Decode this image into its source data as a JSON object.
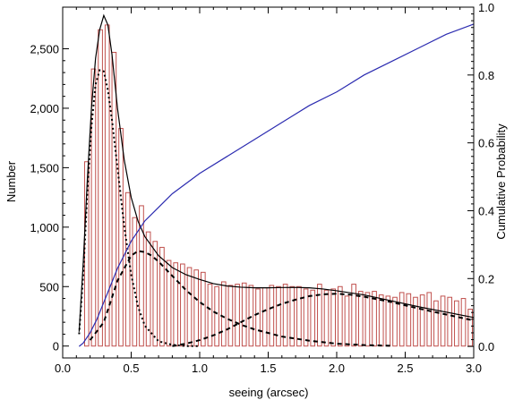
{
  "chart_data": {
    "type": "bar",
    "title": "",
    "xlabel": "seeing (arcsec)",
    "ylabel_left": "Number",
    "ylabel_right": "Cumulative Probability",
    "xlim": [
      0.0,
      3.0
    ],
    "ylim_left": [
      -100,
      2850
    ],
    "ylim_right": [
      -0.034,
      1.0
    ],
    "xticks": [
      {
        "v": 0.0,
        "label": "0.0"
      },
      {
        "v": 0.5,
        "label": "0.5"
      },
      {
        "v": 1.0,
        "label": "1.0"
      },
      {
        "v": 1.5,
        "label": "1.5"
      },
      {
        "v": 2.0,
        "label": "2.0"
      },
      {
        "v": 2.5,
        "label": "2.5"
      },
      {
        "v": 3.0,
        "label": "3.0"
      }
    ],
    "yticks_left": [
      {
        "v": 0,
        "label": "0"
      },
      {
        "v": 500,
        "label": "500"
      },
      {
        "v": 1000,
        "label": "1,000"
      },
      {
        "v": 1500,
        "label": "1,500"
      },
      {
        "v": 2000,
        "label": "2,000"
      },
      {
        "v": 2500,
        "label": "2,500"
      }
    ],
    "yticks_right": [
      {
        "v": 0.0,
        "label": "0.0"
      },
      {
        "v": 0.2,
        "label": "0.2"
      },
      {
        "v": 0.4,
        "label": "0.4"
      },
      {
        "v": 0.6,
        "label": "0.6"
      },
      {
        "v": 0.8,
        "label": "0.8"
      },
      {
        "v": 1.0,
        "label": "1.0"
      }
    ],
    "histogram": {
      "bin_width": 0.05,
      "bin_edges_start": 0.15,
      "values": [
        1550,
        2330,
        2660,
        2700,
        2470,
        1830,
        1290,
        1080,
        1180,
        960,
        880,
        830,
        720,
        700,
        690,
        660,
        640,
        620,
        520,
        500,
        540,
        510,
        520,
        530,
        510,
        480,
        490,
        510,
        500,
        520,
        500,
        500,
        480,
        470,
        520,
        470,
        480,
        500,
        420,
        520,
        460,
        450,
        460,
        430,
        420,
        410,
        450,
        440,
        410,
        430,
        450,
        380,
        420,
        410,
        380,
        400,
        310
      ],
      "color": "#c0504d"
    },
    "fit_total": {
      "x": [
        0.12,
        0.15,
        0.18,
        0.21,
        0.24,
        0.27,
        0.3,
        0.33,
        0.36,
        0.4,
        0.45,
        0.5,
        0.55,
        0.6,
        0.7,
        0.8,
        0.9,
        1.0,
        1.1,
        1.2,
        1.3,
        1.4,
        1.5,
        1.6,
        1.7,
        1.8,
        1.9,
        2.0,
        2.2,
        2.4,
        2.6,
        2.8,
        3.0
      ],
      "y": [
        120,
        700,
        1400,
        2000,
        2420,
        2660,
        2780,
        2700,
        2450,
        2000,
        1560,
        1250,
        1050,
        920,
        760,
        660,
        600,
        560,
        525,
        505,
        495,
        490,
        490,
        492,
        493,
        490,
        480,
        465,
        430,
        380,
        330,
        285,
        240
      ],
      "color": "#000000"
    },
    "component_1": {
      "x": [
        0.12,
        0.15,
        0.18,
        0.21,
        0.24,
        0.27,
        0.3,
        0.33,
        0.36,
        0.4,
        0.45,
        0.5,
        0.55,
        0.6,
        0.7,
        0.8,
        0.9,
        1.0
      ],
      "y": [
        100,
        600,
        1300,
        1850,
        2200,
        2320,
        2310,
        2150,
        1900,
        1500,
        1000,
        600,
        330,
        170,
        40,
        10,
        0,
        0
      ],
      "style": "dotted",
      "color": "#000000"
    },
    "component_2": {
      "x": [
        0.2,
        0.3,
        0.4,
        0.5,
        0.55,
        0.6,
        0.65,
        0.7,
        0.8,
        0.9,
        1.0,
        1.1,
        1.2,
        1.3,
        1.4,
        1.6,
        1.8,
        2.0,
        2.2,
        2.4
      ],
      "y": [
        50,
        200,
        550,
        760,
        800,
        790,
        760,
        710,
        590,
        470,
        370,
        290,
        230,
        180,
        140,
        80,
        45,
        20,
        8,
        2
      ],
      "style": "dashed",
      "color": "#000000"
    },
    "component_3": {
      "x": [
        0.8,
        0.9,
        1.0,
        1.1,
        1.2,
        1.3,
        1.4,
        1.5,
        1.6,
        1.7,
        1.8,
        1.9,
        2.0,
        2.1,
        2.2,
        2.4,
        2.6,
        2.8,
        3.0
      ],
      "y": [
        0,
        20,
        50,
        90,
        140,
        200,
        260,
        310,
        355,
        390,
        420,
        435,
        440,
        432,
        415,
        370,
        315,
        265,
        215
      ],
      "style": "dashed",
      "color": "#000000"
    },
    "cumulative": {
      "x": [
        0.12,
        0.15,
        0.2,
        0.25,
        0.3,
        0.35,
        0.4,
        0.45,
        0.5,
        0.6,
        0.7,
        0.8,
        0.9,
        1.0,
        1.2,
        1.4,
        1.6,
        1.8,
        2.0,
        2.2,
        2.4,
        2.6,
        2.8,
        3.0
      ],
      "y": [
        0.0,
        0.01,
        0.04,
        0.08,
        0.13,
        0.18,
        0.23,
        0.27,
        0.31,
        0.37,
        0.41,
        0.45,
        0.48,
        0.51,
        0.56,
        0.61,
        0.66,
        0.71,
        0.75,
        0.8,
        0.84,
        0.88,
        0.92,
        0.95
      ],
      "color": "#2b2bb0"
    }
  }
}
